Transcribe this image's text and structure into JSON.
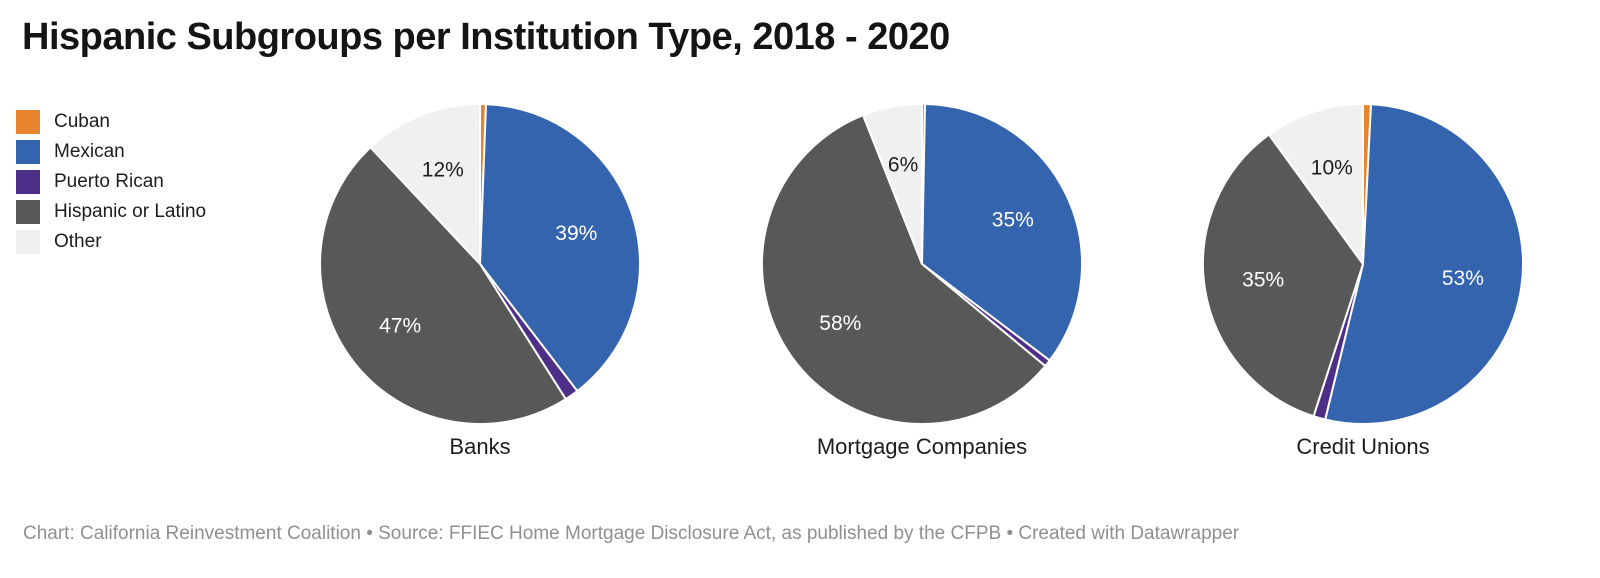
{
  "title": "Hispanic Subgroups per Institution Type, 2018 - 2020",
  "footer": {
    "text": "Chart: California Reinvestment Coalition • Source: FFIEC Home Mortgage Disclosure Act, as published by the CFPB • Created with Datawrapper"
  },
  "legend": {
    "items": [
      {
        "label": "Cuban",
        "color": "#e8832e"
      },
      {
        "label": "Mexican",
        "color": "#3364ad"
      },
      {
        "label": "Puerto Rican",
        "color": "#4d2f87"
      },
      {
        "label": "Hispanic or Latino",
        "color": "#585858"
      },
      {
        "label": "Other",
        "color": "#f0f0f0"
      }
    ]
  },
  "chart_data": {
    "type": "pie",
    "title": "Hispanic Subgroups per Institution Type, 2018 - 2020",
    "legend_position": "top-left",
    "slice_order_clockwise_from_top": [
      "Cuban",
      "Mexican",
      "Puerto Rican",
      "Hispanic or Latino",
      "Other"
    ],
    "series_labels": [
      "Cuban",
      "Mexican",
      "Puerto Rican",
      "Hispanic or Latino",
      "Other"
    ],
    "colors": [
      "#e8832e",
      "#3364ad",
      "#4d2f87",
      "#585858",
      "#f0f0f0"
    ],
    "label_colors": [
      "#ffffff",
      "#ffffff",
      "#ffffff",
      "#ffffff",
      "#1d1d1d"
    ],
    "pies": [
      {
        "label": "Banks",
        "values": [
          0.6,
          39,
          1.4,
          47,
          12
        ],
        "display": [
          "",
          "39%",
          "",
          "47%",
          "12%"
        ]
      },
      {
        "label": "Mortgage Companies",
        "values": [
          0.3,
          35,
          0.7,
          58,
          6
        ],
        "display": [
          "",
          "35%",
          "",
          "58%",
          "6%"
        ]
      },
      {
        "label": "Credit Unions",
        "values": [
          0.8,
          53,
          1.2,
          35,
          10
        ],
        "display": [
          "",
          "53%",
          "",
          "35%",
          "10%"
        ]
      }
    ]
  }
}
